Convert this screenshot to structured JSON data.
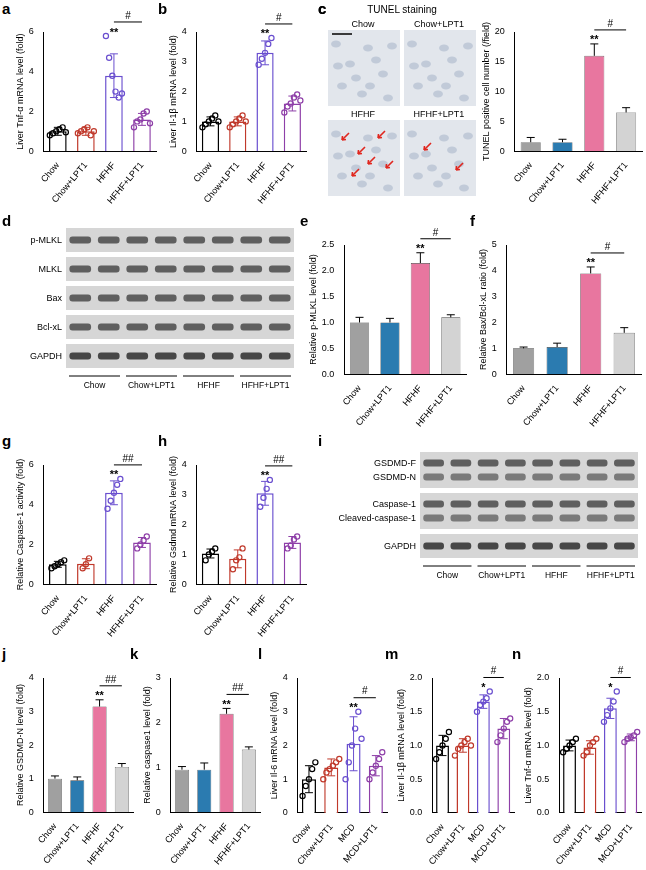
{
  "chart_data": [
    {
      "panel": "a",
      "type": "bar",
      "ylabel": "Liver Tnf-α mRNA level (fold)",
      "categories": [
        "Chow",
        "Chow+LPT1",
        "HFHF",
        "HFHF+LPT1"
      ],
      "values": [
        1.0,
        1.0,
        3.8,
        1.6
      ],
      "error": [
        0.2,
        0.2,
        1.1,
        0.3
      ],
      "points": [
        [
          0.8,
          0.9,
          1.0,
          1.1,
          1.2,
          0.95
        ],
        [
          0.9,
          1.0,
          1.1,
          1.2,
          0.8,
          1.0
        ],
        [
          5.8,
          4.7,
          3.8,
          3.0,
          2.7,
          2.9
        ],
        [
          1.2,
          1.5,
          1.6,
          1.9,
          2.0,
          1.4
        ]
      ],
      "colors": [
        "#000000",
        "#c0392b",
        "#6a4fcf",
        "#8e3fa8"
      ],
      "ylim": [
        0,
        6
      ],
      "yticks": [
        0,
        2,
        4,
        6
      ],
      "grid": false,
      "annotations": [
        {
          "text": "**",
          "category": "HFHF"
        },
        {
          "text": "#",
          "from": "HFHF",
          "to": "HFHF+LPT1"
        }
      ]
    },
    {
      "panel": "b",
      "type": "bar",
      "ylabel": "Liver Il-1β mRNA level (fold)",
      "categories": [
        "Chow",
        "Chow+LPT1",
        "HFHF",
        "HFHF+LPT1"
      ],
      "values": [
        1.0,
        1.0,
        3.3,
        1.6
      ],
      "error": [
        0.15,
        0.15,
        0.4,
        0.25
      ],
      "points": [
        [
          0.8,
          0.9,
          1.0,
          1.1,
          1.2,
          1.0
        ],
        [
          0.8,
          0.9,
          1.0,
          1.1,
          1.2,
          1.0
        ],
        [
          2.9,
          3.1,
          3.3,
          3.6,
          3.8
        ],
        [
          1.3,
          1.5,
          1.6,
          1.8,
          1.9,
          1.7
        ]
      ],
      "colors": [
        "#000000",
        "#c0392b",
        "#6a4fcf",
        "#8e3fa8"
      ],
      "ylim": [
        0,
        4
      ],
      "yticks": [
        0,
        1,
        2,
        3,
        4
      ],
      "grid": false,
      "annotations": [
        {
          "text": "**",
          "category": "HFHF"
        },
        {
          "text": "#",
          "from": "HFHF",
          "to": "HFHF+LPT1"
        }
      ]
    },
    {
      "panel": "c",
      "type": "bar",
      "ylabel": "TUNEL positive cell number (/field)",
      "categories": [
        "Chow",
        "Chow+LPT1",
        "HFHF",
        "HFHF+LPT1"
      ],
      "values": [
        1.5,
        1.5,
        16,
        6.5
      ],
      "error": [
        0.8,
        0.5,
        2,
        0.8
      ],
      "colors": [
        "#a0a0a0",
        "#2b7bb0",
        "#e8769f",
        "#d3d3d3"
      ],
      "ylim": [
        0,
        20
      ],
      "yticks": [
        0,
        5,
        10,
        15,
        20
      ],
      "grid": false,
      "annotations": [
        {
          "text": "**",
          "category": "HFHF"
        },
        {
          "text": "#",
          "from": "HFHF",
          "to": "HFHF+LPT1"
        }
      ]
    },
    {
      "panel": "e",
      "type": "bar",
      "ylabel": "Relative p-MLKL level (fold)",
      "categories": [
        "Chow",
        "Chow+LPT1",
        "HFHF",
        "HFHF+LPT1"
      ],
      "values": [
        1.0,
        1.0,
        2.15,
        1.1
      ],
      "error": [
        0.1,
        0.08,
        0.2,
        0.05
      ],
      "colors": [
        "#a0a0a0",
        "#2b7bb0",
        "#e8769f",
        "#d3d3d3"
      ],
      "ylim": [
        0,
        2.5
      ],
      "yticks": [
        {
          "value": 0,
          "label": "0.0"
        },
        {
          "value": 0.5,
          "label": "0.5"
        },
        {
          "value": 1,
          "label": "1.0"
        },
        {
          "value": 1.5,
          "label": "1.5"
        },
        {
          "value": 2,
          "label": "2.0"
        },
        {
          "value": 2.5,
          "label": "2.5"
        }
      ],
      "grid": false,
      "annotations": [
        {
          "text": "**",
          "category": "HFHF"
        },
        {
          "text": "#",
          "from": "HFHF",
          "to": "HFHF+LPT1"
        }
      ]
    },
    {
      "panel": "f",
      "type": "bar",
      "ylabel": "Relative Bax/Bcl-xL ratio (fold)",
      "categories": [
        "Chow",
        "Chow+LPT1",
        "HFHF",
        "HFHF+LPT1"
      ],
      "values": [
        1.0,
        1.05,
        3.9,
        1.6
      ],
      "error": [
        0.05,
        0.15,
        0.25,
        0.2
      ],
      "colors": [
        "#a0a0a0",
        "#2b7bb0",
        "#e8769f",
        "#d3d3d3"
      ],
      "ylim": [
        0,
        5
      ],
      "yticks": [
        0,
        1,
        2,
        3,
        4,
        5
      ],
      "grid": false,
      "annotations": [
        {
          "text": "**",
          "category": "HFHF"
        },
        {
          "text": "#",
          "from": "HFHF",
          "to": "HFHF+LPT1"
        }
      ]
    },
    {
      "panel": "g",
      "type": "bar",
      "ylabel": "Relative Caspase-1 activity (fold)",
      "categories": [
        "Chow",
        "Chow+LPT1",
        "HFHF",
        "HFHF+LPT1"
      ],
      "values": [
        1.0,
        1.03,
        4.6,
        2.1
      ],
      "error": [
        0.15,
        0.25,
        0.6,
        0.25
      ],
      "points": [
        [
          0.8,
          0.9,
          1.0,
          1.1,
          1.2
        ],
        [
          0.8,
          1.0,
          1.3
        ],
        [
          3.8,
          4.2,
          4.6,
          5.0,
          5.3
        ],
        [
          1.8,
          2.0,
          2.2,
          2.4
        ]
      ],
      "colors": [
        "#000000",
        "#c0392b",
        "#6a4fcf",
        "#8e3fa8"
      ],
      "ylim": [
        0,
        6
      ],
      "yticks": [
        0,
        2,
        4,
        6
      ],
      "grid": false,
      "annotations": [
        {
          "text": "**",
          "category": "HFHF"
        },
        {
          "text": "##",
          "from": "HFHF",
          "to": "HFHF+LPT1"
        }
      ]
    },
    {
      "panel": "h",
      "type": "bar",
      "ylabel": "Relative Gsdmd mRNA level (fold)",
      "categories": [
        "Chow",
        "Chow+LPT1",
        "HFHF",
        "HFHF+LPT1"
      ],
      "values": [
        1.03,
        0.85,
        3.05,
        1.4
      ],
      "error": [
        0.15,
        0.3,
        0.4,
        0.2
      ],
      "points": [
        [
          0.8,
          1.0,
          1.1,
          1.2
        ],
        [
          0.5,
          0.8,
          0.9,
          1.2
        ],
        [
          2.6,
          2.9,
          3.2,
          3.5
        ],
        [
          1.2,
          1.3,
          1.5,
          1.6
        ]
      ],
      "colors": [
        "#000000",
        "#c0392b",
        "#6a4fcf",
        "#8e3fa8"
      ],
      "ylim": [
        0,
        4
      ],
      "yticks": [
        0,
        1,
        2,
        3,
        4
      ],
      "grid": false,
      "annotations": [
        {
          "text": "**",
          "category": "HFHF"
        },
        {
          "text": "##",
          "from": "HFHF",
          "to": "HFHF+LPT1"
        }
      ]
    },
    {
      "panel": "j",
      "type": "bar",
      "ylabel": "Relative GSDMD-N level (fold)",
      "categories": [
        "Chow",
        "Chow+LPT1",
        "HFHF",
        "HFHF+LPT1"
      ],
      "values": [
        1.0,
        0.95,
        3.15,
        1.35
      ],
      "error": [
        0.08,
        0.1,
        0.2,
        0.1
      ],
      "colors": [
        "#a0a0a0",
        "#2b7bb0",
        "#e8769f",
        "#d3d3d3"
      ],
      "ylim": [
        0,
        4
      ],
      "yticks": [
        0,
        1,
        2,
        3,
        4
      ],
      "grid": false,
      "annotations": [
        {
          "text": "**",
          "category": "HFHF"
        },
        {
          "text": "##",
          "from": "HFHF",
          "to": "HFHF+LPT1"
        }
      ]
    },
    {
      "panel": "k",
      "type": "bar",
      "ylabel": "Relative caspase1 level (fold)",
      "categories": [
        "Chow",
        "Chow+LPT1",
        "HFHF",
        "HFHF+LPT1"
      ],
      "values": [
        0.95,
        0.95,
        2.2,
        1.4
      ],
      "error": [
        0.07,
        0.15,
        0.12,
        0.06
      ],
      "colors": [
        "#a0a0a0",
        "#2b7bb0",
        "#e8769f",
        "#d3d3d3"
      ],
      "ylim": [
        0,
        3
      ],
      "yticks": [
        0,
        1,
        2,
        3
      ],
      "grid": false,
      "annotations": [
        {
          "text": "**",
          "category": "HFHF"
        },
        {
          "text": "##",
          "from": "HFHF",
          "to": "HFHF+LPT1"
        }
      ]
    },
    {
      "panel": "l",
      "type": "bar",
      "ylabel": "Liver Il-6 mRNA level (fold)",
      "categories": [
        "Chow",
        "Chow+LPT1",
        "MCD",
        "MCD+LPT1"
      ],
      "values": [
        1.0,
        1.35,
        2.05,
        1.4
      ],
      "error": [
        0.4,
        0.25,
        0.8,
        0.3
      ],
      "points": [
        [
          0.5,
          0.8,
          1.0,
          1.3,
          1.5
        ],
        [
          1.0,
          1.2,
          1.3,
          1.4,
          1.5,
          1.6
        ],
        [
          1.0,
          1.5,
          2.0,
          2.5,
          3.0,
          2.2
        ],
        [
          1.0,
          1.2,
          1.4,
          1.6,
          1.8
        ]
      ],
      "colors": [
        "#000000",
        "#c0392b",
        "#6a4fcf",
        "#8e3fa8"
      ],
      "ylim": [
        0,
        4
      ],
      "yticks": [
        0,
        1,
        2,
        3,
        4
      ],
      "grid": false,
      "annotations": [
        {
          "text": "**",
          "category": "MCD"
        },
        {
          "text": "#",
          "from": "MCD",
          "to": "MCD+LPT1"
        }
      ]
    },
    {
      "panel": "m",
      "type": "bar",
      "ylabel": "Liver Il-1β mRNA level (fold)",
      "categories": [
        "Chow",
        "Chow+LPT1",
        "MCD",
        "MCD+LPT1"
      ],
      "values": [
        1.0,
        1.0,
        1.65,
        1.25
      ],
      "error": [
        0.15,
        0.1,
        0.1,
        0.15
      ],
      "points": [
        [
          0.8,
          0.9,
          1.0,
          1.1,
          1.2
        ],
        [
          0.85,
          0.95,
          1.0,
          1.05,
          1.1,
          1.0
        ],
        [
          1.5,
          1.6,
          1.65,
          1.7,
          1.8
        ],
        [
          1.05,
          1.15,
          1.25,
          1.35,
          1.4
        ]
      ],
      "colors": [
        "#000000",
        "#c0392b",
        "#6a4fcf",
        "#8e3fa8"
      ],
      "ylim": [
        0,
        2
      ],
      "yticks": [
        {
          "value": 0,
          "label": "0.0"
        },
        {
          "value": 0.5,
          "label": "0.5"
        },
        {
          "value": 1,
          "label": "1.0"
        },
        {
          "value": 1.5,
          "label": "1.5"
        },
        {
          "value": 2,
          "label": "2.0"
        }
      ],
      "grid": false,
      "annotations": [
        {
          "text": "*",
          "category": "MCD"
        },
        {
          "text": "#",
          "from": "MCD",
          "to": "MCD+LPT1"
        }
      ]
    },
    {
      "panel": "n",
      "type": "bar",
      "ylabel": "Liver Tnf-α mRNA level (fold)",
      "categories": [
        "Chow",
        "Chow+LPT1",
        "MCD",
        "MCD+LPT1"
      ],
      "values": [
        1.0,
        0.97,
        1.55,
        1.12
      ],
      "error": [
        0.08,
        0.1,
        0.15,
        0.05
      ],
      "points": [
        [
          0.9,
          0.95,
          1.0,
          1.05,
          1.1
        ],
        [
          0.85,
          0.9,
          1.0,
          1.05,
          1.1
        ],
        [
          1.35,
          1.45,
          1.55,
          1.65,
          1.8
        ],
        [
          1.05,
          1.1,
          1.12,
          1.15,
          1.2
        ]
      ],
      "colors": [
        "#000000",
        "#c0392b",
        "#6a4fcf",
        "#8e3fa8"
      ],
      "ylim": [
        0,
        2
      ],
      "yticks": [
        {
          "value": 0,
          "label": "0.0"
        },
        {
          "value": 0.5,
          "label": "0.5"
        },
        {
          "value": 1,
          "label": "1.0"
        },
        {
          "value": 1.5,
          "label": "1.5"
        },
        {
          "value": 2,
          "label": "2.0"
        }
      ],
      "grid": false,
      "annotations": [
        {
          "text": "*",
          "category": "MCD"
        },
        {
          "text": "#",
          "from": "MCD",
          "to": "MCD+LPT1"
        }
      ]
    }
  ],
  "images": {
    "panel": "c",
    "title": "TUNEL staining",
    "labels": [
      "Chow",
      "Chow+LPT1",
      "HFHF",
      "HFHF+LPT1"
    ]
  },
  "blots": [
    {
      "panel": "d",
      "strips": [
        [
          "p-MLKL"
        ],
        [
          "MLKL"
        ],
        [
          "Bax"
        ],
        [
          "Bcl-xL"
        ],
        [
          "GAPDH"
        ]
      ],
      "groups": [
        "Chow",
        "Chow+LPT1",
        "HFHF",
        "HFHF+LPT1"
      ]
    },
    {
      "panel": "i",
      "strips": [
        [
          "GSDMD-F",
          "GSDMD-N"
        ],
        [
          "Caspase-1",
          "Cleaved-caspase-1"
        ],
        [
          "GAPDH"
        ]
      ],
      "groups": [
        "Chow",
        "Chow+LPT1",
        "HFHF",
        "HFHF+LPT1"
      ]
    }
  ]
}
